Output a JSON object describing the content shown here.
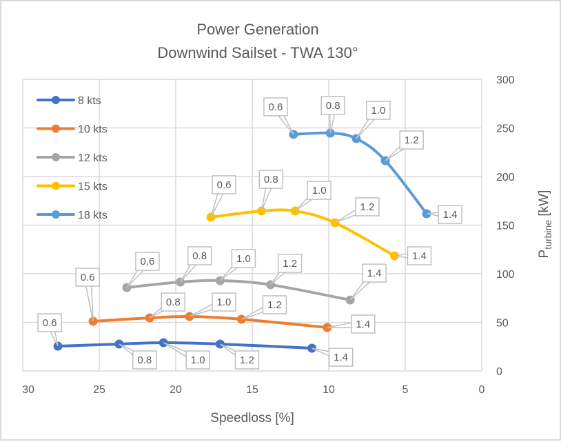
{
  "chart_data": {
    "type": "line",
    "title": "Power Generation",
    "subtitle": "Downwind Sailset - TWA 130°",
    "xlabel": "Speedloss [%]",
    "ylabel": "P",
    "ylabel_subscript": "turbine",
    "ylabel_suffix": " [kW]",
    "xlim": [
      30,
      0
    ],
    "ylim": [
      0,
      300
    ],
    "x_reversed": true,
    "y_axis_side": "right",
    "grid": true,
    "legend_position": "top-left",
    "x_ticks": [
      "30",
      "25",
      "20",
      "15",
      "10",
      "5",
      "0"
    ],
    "x_tick_values": [
      30,
      25,
      20,
      15,
      10,
      5,
      0
    ],
    "y_ticks": [
      "0",
      "50",
      "100",
      "150",
      "200",
      "250",
      "300"
    ],
    "y_tick_values": [
      0,
      50,
      100,
      150,
      200,
      250,
      300
    ],
    "series": [
      {
        "name": "8 kts",
        "color": "#4472C4",
        "x": [
          27.7,
          23.7,
          20.8,
          17.1,
          11.1
        ],
        "y": [
          25.5,
          27.7,
          29.1,
          27.7,
          23.4
        ],
        "labels": [
          "0.6",
          "0.8",
          "1.0",
          "1.2",
          "1.4"
        ]
      },
      {
        "name": "10 kts",
        "color": "#ED7D31",
        "x": [
          25.4,
          21.7,
          19.1,
          15.7,
          10.1
        ],
        "y": [
          51.1,
          54.6,
          56.0,
          53.2,
          44.7
        ],
        "labels": [
          "0.6",
          "0.8",
          "1.0",
          "1.2",
          "1.4"
        ]
      },
      {
        "name": "12 kts",
        "color": "#A5A5A5",
        "x": [
          23.2,
          19.7,
          17.1,
          13.8,
          8.6
        ],
        "y": [
          85.8,
          91.5,
          92.9,
          88.7,
          73.0
        ],
        "labels": [
          "0.6",
          "0.8",
          "1.0",
          "1.2",
          "1.4"
        ]
      },
      {
        "name": "15 kts",
        "color": "#FFC000",
        "x": [
          17.7,
          14.4,
          12.2,
          9.6,
          5.7
        ],
        "y": [
          158.2,
          164.5,
          164.5,
          152.5,
          118.4
        ],
        "labels": [
          "0.6",
          "0.8",
          "1.0",
          "1.2",
          "1.4"
        ]
      },
      {
        "name": "18 kts",
        "color": "#5B9BD5",
        "x": [
          12.3,
          9.9,
          8.2,
          6.3,
          3.6
        ],
        "y": [
          243.3,
          244.7,
          239.0,
          216.3,
          161.7
        ],
        "labels": [
          "0.6",
          "0.8",
          "1.0",
          "1.2",
          "1.4"
        ]
      }
    ]
  }
}
